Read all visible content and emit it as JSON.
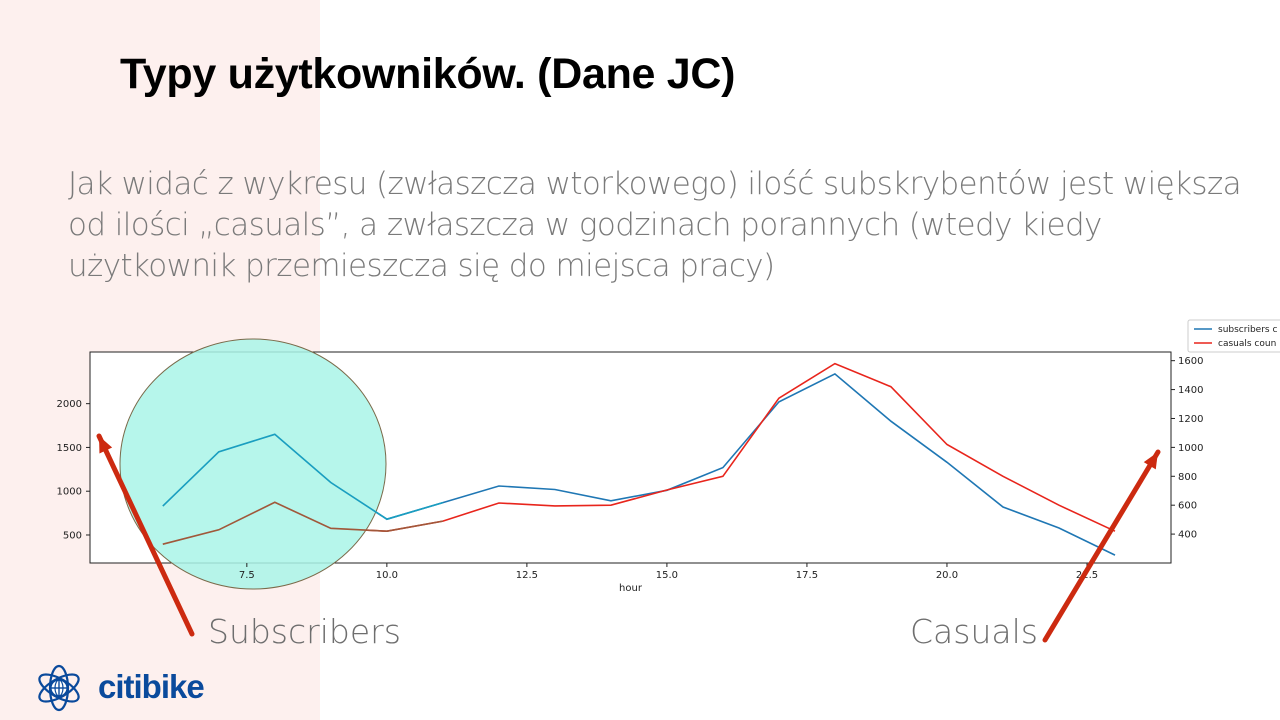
{
  "slide": {
    "title": "Typy użytkowników. (Dane JC)",
    "body": "Jak widać z wykresu (zwłaszcza wtorkowego) ilość subskrybentów jest większa od ilości „casuals”, a zwłaszcza w godzinach porannych (wtedy kiedy użytkownik przemieszcza się do miejsca pracy)",
    "label_subscribers": "Subscribers",
    "label_casuals": "Casuals",
    "logo_text": "citibike",
    "logo_icon": "globe-rings-icon",
    "colors": {
      "left_band": "#fdf0ee",
      "highlight_circle": "#a9f5e8",
      "arrow": "#cc2a10",
      "logo": "#0a4a9c"
    }
  },
  "chart_data": {
    "type": "line",
    "title": "",
    "xlabel": "hour",
    "ylabel": "",
    "y2label": "",
    "x": [
      6,
      7,
      8,
      9,
      10,
      11,
      12,
      13,
      14,
      15,
      16,
      17,
      18,
      19,
      20,
      21,
      22,
      23
    ],
    "xlim": [
      4.7,
      24.0
    ],
    "ylim": [
      180,
      2590
    ],
    "y2lim": [
      200,
      1660
    ],
    "xticks": [
      "7.5",
      "10.0",
      "12.5",
      "15.0",
      "17.5",
      "20.0",
      "22.5"
    ],
    "yticks": [
      "500",
      "1000",
      "1500",
      "2000"
    ],
    "y2ticks": [
      "400",
      "600",
      "800",
      "1000",
      "1200",
      "1400",
      "1600"
    ],
    "grid": false,
    "legend_position": "outside-top-right",
    "series": [
      {
        "name": "subscribers c",
        "axis": "left",
        "color": "#1f77b4",
        "values": [
          830,
          1450,
          1650,
          1100,
          680,
          870,
          1060,
          1020,
          890,
          1010,
          1270,
          2020,
          2340,
          1800,
          1330,
          820,
          580,
          270
        ]
      },
      {
        "name": "casuals coun",
        "axis": "right",
        "color": "#e8251c",
        "values": [
          330,
          430,
          620,
          440,
          420,
          490,
          615,
          595,
          600,
          705,
          800,
          1340,
          1580,
          1420,
          1020,
          800,
          600,
          420
        ]
      }
    ]
  }
}
